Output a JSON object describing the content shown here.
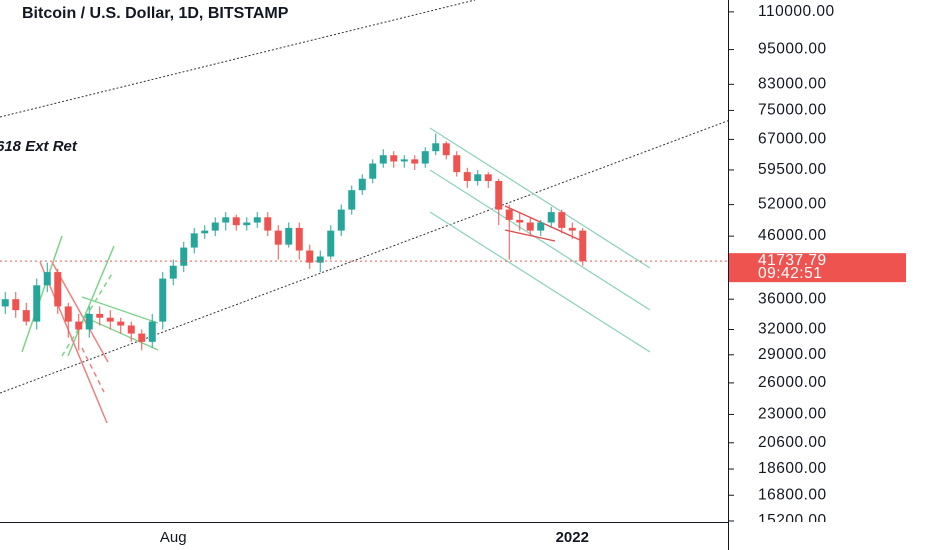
{
  "chart_data": {
    "type": "candlestick",
    "title": "Bitcoin / U.S. Dollar, 1D, BITSTAMP",
    "annotation": "618 Ext Ret",
    "log_scale": true,
    "up_color": "#26a69a",
    "down_color": "#ef5350",
    "categories": [
      null,
      null,
      null,
      null,
      null,
      null,
      null,
      null,
      null,
      null,
      null,
      null,
      null,
      null,
      null,
      null,
      "Aug",
      null,
      null,
      null,
      null,
      null,
      null,
      null,
      null,
      null,
      null,
      null,
      null,
      null,
      null,
      null,
      null,
      null,
      null,
      null,
      null,
      null,
      null,
      null,
      null,
      null,
      null,
      null,
      null,
      null,
      null,
      null,
      null,
      null,
      null,
      null,
      null,
      null,
      "2022",
      null
    ],
    "open": [
      35000,
      36000,
      34500,
      33000,
      38000,
      40000,
      35000,
      33000,
      32000,
      34000,
      33500,
      33000,
      32500,
      31500,
      30500,
      33000,
      39000,
      41000,
      44000,
      46500,
      47000,
      48500,
      49500,
      48000,
      48500,
      49500,
      47000,
      44500,
      47500,
      43500,
      41500,
      42500,
      47000,
      51000,
      55000,
      57500,
      61000,
      63000,
      61500,
      62000,
      61000,
      64000,
      66000,
      63000,
      59000,
      57000,
      58500,
      57000,
      51000,
      49000,
      48500,
      47000,
      48500,
      50500,
      47500,
      47000
    ],
    "high": [
      37000,
      37000,
      35500,
      39000,
      41500,
      40500,
      35500,
      34000,
      35000,
      35000,
      34500,
      33500,
      33000,
      32000,
      34000,
      40000,
      42000,
      45000,
      47500,
      48000,
      49500,
      50500,
      50000,
      49500,
      50500,
      50500,
      48000,
      48500,
      48500,
      44500,
      43500,
      48000,
      52000,
      56000,
      58500,
      62000,
      64500,
      64000,
      63000,
      63000,
      65000,
      68500,
      66500,
      64000,
      60000,
      59500,
      59000,
      57500,
      52000,
      50500,
      49500,
      49000,
      51500,
      51000,
      48500,
      47500
    ],
    "low": [
      34000,
      33500,
      32500,
      32000,
      37000,
      34000,
      31000,
      29500,
      31000,
      32500,
      32000,
      31500,
      30500,
      29500,
      29800,
      32000,
      38000,
      40000,
      43000,
      45500,
      46000,
      47000,
      47000,
      47000,
      47500,
      46000,
      42000,
      44000,
      42000,
      40500,
      40000,
      42000,
      46000,
      50000,
      54000,
      56500,
      60000,
      60000,
      60000,
      59500,
      60000,
      63000,
      62000,
      58000,
      55500,
      56000,
      55500,
      48000,
      42000,
      47000,
      46000,
      46000,
      47500,
      46500,
      45500,
      41000
    ],
    "close": [
      36000,
      34500,
      33000,
      38000,
      40000,
      35000,
      33000,
      32000,
      34000,
      33500,
      33000,
      32500,
      31500,
      30500,
      33000,
      39000,
      41000,
      44000,
      46500,
      47000,
      48500,
      49500,
      48000,
      48500,
      49500,
      47000,
      44500,
      47500,
      43500,
      41500,
      42500,
      47000,
      51000,
      55000,
      57500,
      61000,
      63000,
      61500,
      62000,
      61000,
      64000,
      66000,
      63000,
      59000,
      57000,
      58500,
      57000,
      51000,
      49000,
      48500,
      47000,
      48500,
      50500,
      47500,
      47000,
      41737.79
    ],
    "last_price_label": "41737.79",
    "countdown": "09:42:51",
    "ylim": [
      15140,
      115200
    ],
    "yticks": [
      {
        "value": 110000,
        "label": "110000.00"
      },
      {
        "value": 95000,
        "label": "95000.00"
      },
      {
        "value": 83000,
        "label": "83000.00"
      },
      {
        "value": 75000,
        "label": "75000.00"
      },
      {
        "value": 67000,
        "label": "67000.00"
      },
      {
        "value": 59500,
        "label": "59500.00"
      },
      {
        "value": 52000,
        "label": "52000.00"
      },
      {
        "value": 46000,
        "label": "46000.00"
      },
      {
        "value": 36000,
        "label": "36000.00"
      },
      {
        "value": 32000,
        "label": "32000.00"
      },
      {
        "value": 29000,
        "label": "29000.00"
      },
      {
        "value": 26000,
        "label": "26000.00"
      },
      {
        "value": 23000,
        "label": "23000.00"
      },
      {
        "value": 20600,
        "label": "20600.00"
      },
      {
        "value": 18600,
        "label": "18600.00"
      },
      {
        "value": 16800,
        "label": "16800.00"
      },
      {
        "value": 15200,
        "label": "15200.00"
      }
    ]
  }
}
